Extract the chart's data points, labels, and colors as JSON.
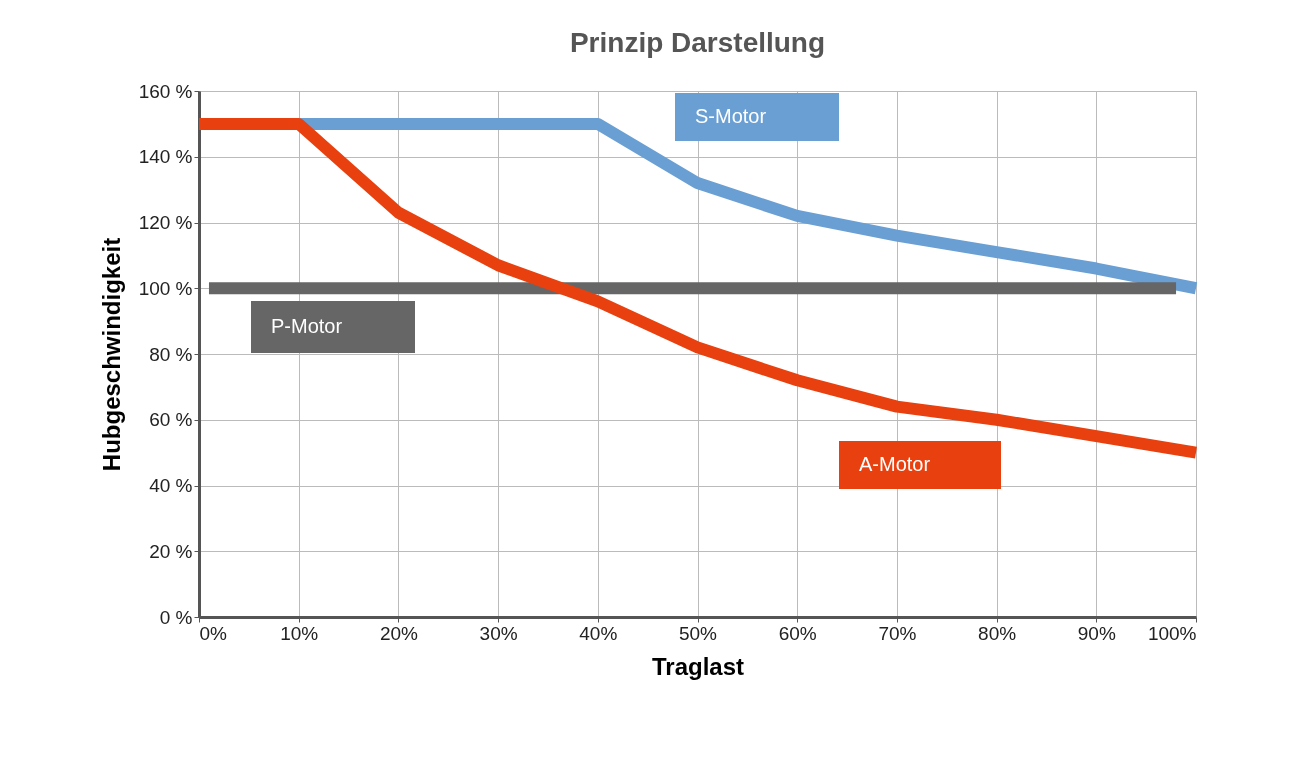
{
  "chart_data": {
    "type": "line",
    "title": "Prinzip Darstellung",
    "xlabel": "Traglast",
    "ylabel": "Hubgeschwindigkeit",
    "legend": false,
    "grid": true,
    "marker": "none",
    "line_style": "solid",
    "xlim": [
      0,
      100
    ],
    "ylim": [
      0,
      160
    ],
    "xticks": [
      {
        "value": 0,
        "label": "0%"
      },
      {
        "value": 10,
        "label": "10%"
      },
      {
        "value": 20,
        "label": "20%"
      },
      {
        "value": 30,
        "label": "30%"
      },
      {
        "value": 40,
        "label": "40%"
      },
      {
        "value": 50,
        "label": "50%"
      },
      {
        "value": 60,
        "label": "60%"
      },
      {
        "value": 70,
        "label": "70%"
      },
      {
        "value": 80,
        "label": "80%"
      },
      {
        "value": 90,
        "label": "90%"
      },
      {
        "value": 100,
        "label": "100%"
      }
    ],
    "yticks": [
      {
        "value": 0,
        "label": "0 %"
      },
      {
        "value": 20,
        "label": "20 %"
      },
      {
        "value": 40,
        "label": "40 %"
      },
      {
        "value": 60,
        "label": "60 %"
      },
      {
        "value": 80,
        "label": "80 %"
      },
      {
        "value": 100,
        "label": "100 %"
      },
      {
        "value": 120,
        "label": "120 %"
      },
      {
        "value": 140,
        "label": "140 %"
      },
      {
        "value": 160,
        "label": "160 %"
      }
    ],
    "series": [
      {
        "name": "S-Motor",
        "color": "#6a9fd4",
        "x": [
          10,
          20,
          30,
          40,
          50,
          60,
          70,
          80,
          90,
          100
        ],
        "values": [
          150,
          150,
          150,
          150,
          132,
          122,
          116,
          111,
          106,
          100
        ]
      },
      {
        "name": "P-Motor",
        "color": "#666666",
        "x": [
          1,
          98
        ],
        "values": [
          100,
          100
        ]
      },
      {
        "name": "A-Motor",
        "color": "#e8410f",
        "x": [
          0,
          10,
          20,
          30,
          40,
          50,
          60,
          70,
          80,
          90,
          100
        ],
        "values": [
          150,
          150,
          123,
          107,
          96,
          82,
          72,
          64,
          60,
          55,
          50
        ]
      }
    ]
  }
}
